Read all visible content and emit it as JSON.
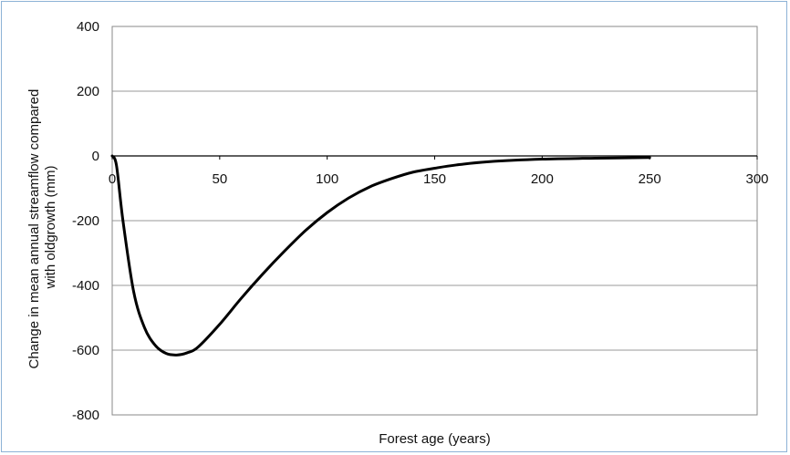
{
  "chart_data": {
    "type": "line",
    "title": "",
    "xlabel": "Forest age (years)",
    "ylabel": "Change in mean annual streamflow compared with oldgrowth (mm)",
    "xlim": [
      0,
      300
    ],
    "ylim": [
      -800,
      400
    ],
    "xticks": [
      0,
      50,
      100,
      150,
      200,
      250,
      300
    ],
    "yticks": [
      400,
      200,
      0,
      -200,
      -400,
      -600,
      -800
    ],
    "grid": "horizontal",
    "legend": "none",
    "series": [
      {
        "color": "#000000",
        "x": [
          0,
          2,
          5,
          10,
          15,
          20,
          25,
          30,
          35,
          40,
          50,
          60,
          70,
          80,
          90,
          100,
          110,
          120,
          130,
          140,
          150,
          160,
          175,
          200,
          225,
          250
        ],
        "y": [
          0,
          -30,
          -200,
          -420,
          -530,
          -585,
          -610,
          -615,
          -608,
          -590,
          -520,
          -440,
          -365,
          -295,
          -230,
          -175,
          -130,
          -95,
          -70,
          -50,
          -38,
          -28,
          -18,
          -10,
          -7,
          -5
        ]
      }
    ]
  }
}
